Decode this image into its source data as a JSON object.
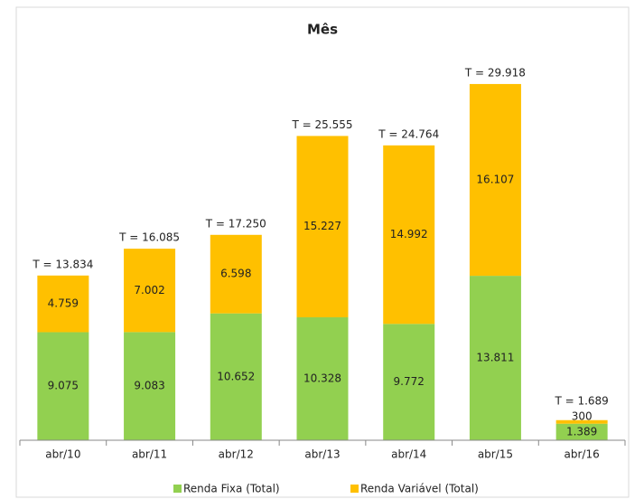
{
  "chart_data": {
    "type": "stacked_bar",
    "title": "Mês",
    "categories": [
      "abr/10",
      "abr/11",
      "abr/12",
      "abr/13",
      "abr/14",
      "abr/15",
      "abr/16"
    ],
    "series": [
      {
        "name": "Renda Fixa (Total)",
        "color": "#92d050",
        "values": [
          9075,
          9083,
          10652,
          10328,
          9772,
          13811,
          1389
        ],
        "value_labels": [
          "9.075",
          "9.083",
          "10.652",
          "10.328",
          "9.772",
          "13.811",
          "1.389"
        ]
      },
      {
        "name": "Renda Variável (Total)",
        "color": "#ffc000",
        "values": [
          4759,
          7002,
          6598,
          15227,
          14992,
          16107,
          300
        ],
        "value_labels": [
          "4.759",
          "7.002",
          "6.598",
          "15.227",
          "14.992",
          "16.107",
          "300"
        ]
      }
    ],
    "total_labels": [
      "T = 13.834",
      "T = 16.085",
      "T = 17.250",
      "T = 25.555",
      "T = 24.764",
      "T = 29.918",
      "T = 1.689"
    ],
    "ylim": [
      0,
      35000
    ],
    "legend": "bottom"
  }
}
